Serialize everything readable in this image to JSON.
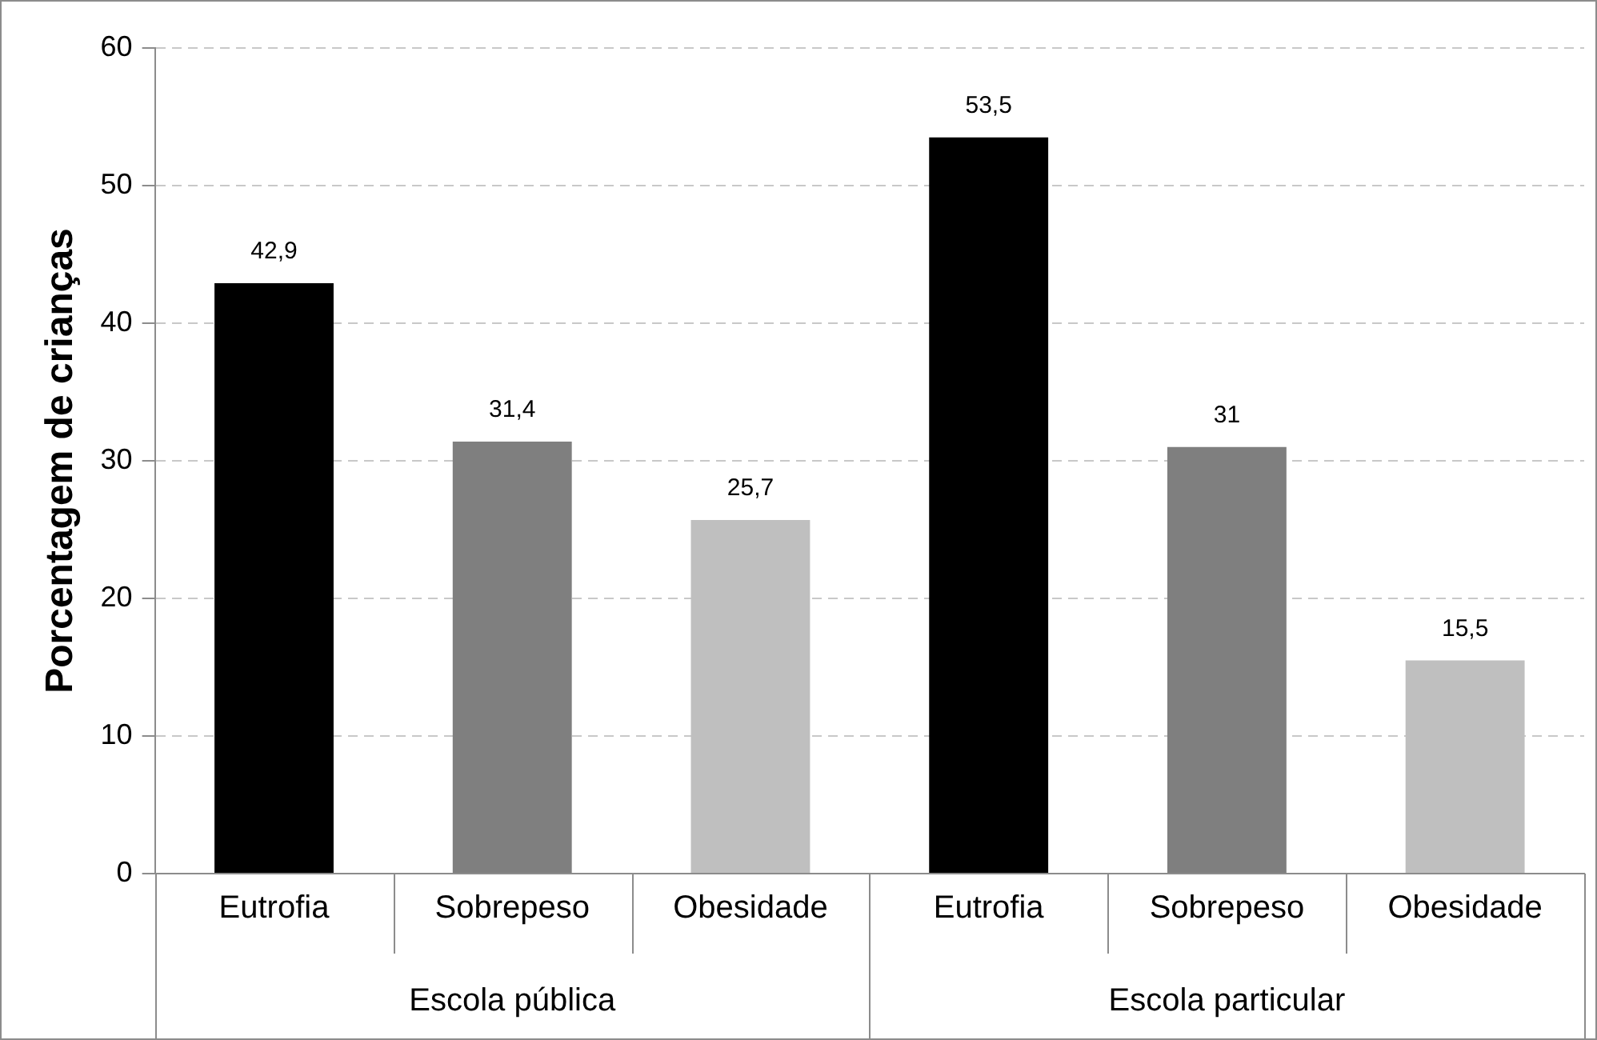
{
  "chart_data": {
    "type": "bar",
    "ylabel": "Porcentagem de crianças",
    "categories": [
      "Eutrofia",
      "Sobrepeso",
      "Obesidade",
      "Eutrofia",
      "Sobrepeso",
      "Obesidade"
    ],
    "values": [
      42.9,
      31.4,
      25.7,
      53.5,
      31,
      15.5
    ],
    "colors": [
      "#000000",
      "#7f7f7f",
      "#bfbfbf",
      "#000000",
      "#7f7f7f",
      "#bfbfbf"
    ],
    "value_labels": [
      "42,9",
      "31,4",
      "25,7",
      "53,5",
      "31",
      "15,5"
    ],
    "ylim": [
      0,
      60
    ],
    "yticks": [
      0,
      10,
      20,
      30,
      40,
      50,
      60
    ],
    "grid": "y",
    "annotations": [
      "Escola pública",
      "Escola particular"
    ]
  }
}
